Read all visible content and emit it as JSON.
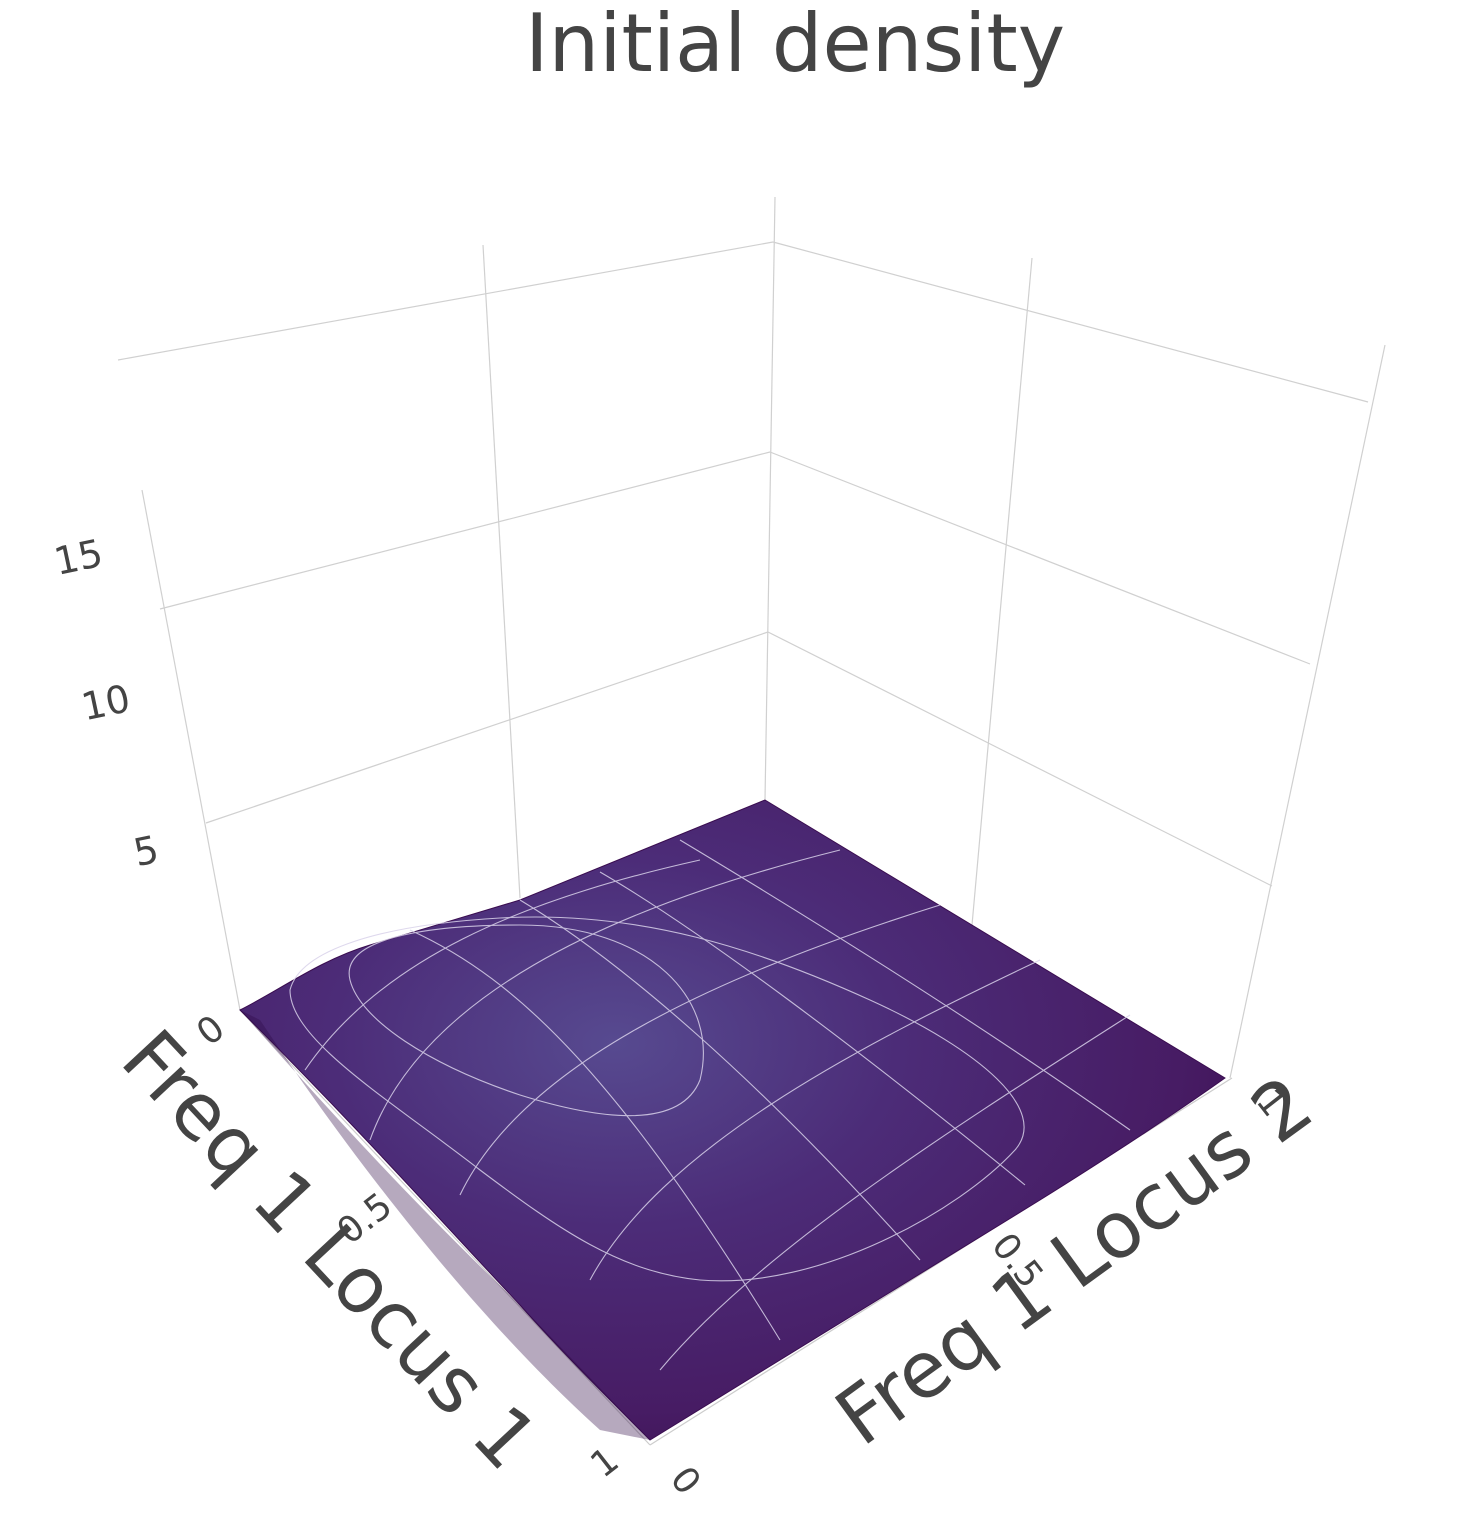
{
  "chart_data": {
    "type": "surface",
    "title": "Initial density",
    "xlabel": "Freq 1 Locus 1",
    "ylabel": "Freq 1 Locus 2",
    "zlabel": "",
    "xlim": [
      0,
      1
    ],
    "ylim": [
      0,
      1
    ],
    "zlim": [
      0,
      17
    ],
    "x_ticks": [
      "0",
      "0.5",
      "1"
    ],
    "y_ticks": [
      "0",
      "0.5",
      "1"
    ],
    "z_ticks": [
      "5",
      "10",
      "15"
    ],
    "z_tick_values": [
      5,
      10,
      15
    ],
    "colorscale": [
      "#3b0f5a",
      "#4a1a66",
      "#56408a"
    ],
    "surface_peak": {
      "x": 0.25,
      "y": 0.3,
      "z": 1.5
    },
    "surface_z_range": [
      0,
      1.5
    ],
    "grid": true,
    "contours_shown": true
  }
}
